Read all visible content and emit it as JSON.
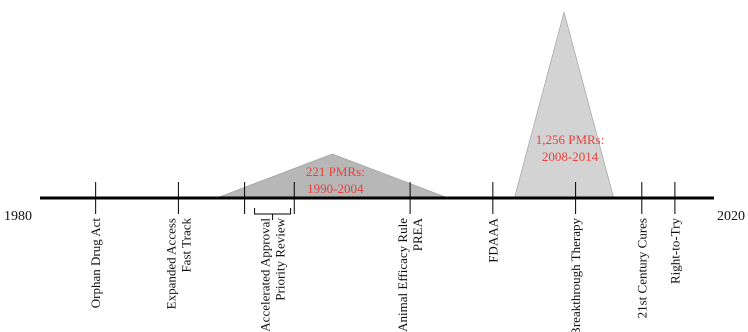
{
  "timeline": {
    "start_label": "1980",
    "end_label": "2020",
    "start_year": 1980,
    "end_year": 2020
  },
  "events": [
    {
      "id": "orphan-drug-act",
      "lines": [
        "Orphan Drug Act"
      ],
      "year": 1983
    },
    {
      "id": "expanded-access-fast-track",
      "lines": [
        "Expanded Access",
        "Fast Track"
      ],
      "year": 1988
    },
    {
      "id": "accelerated-approval-priority-review",
      "lines": [
        "Accelerated Approval",
        "Priority Review"
      ],
      "year": 1992,
      "bracket": true
    },
    {
      "id": "unlabeled-1995",
      "lines": [],
      "year": 1995
    },
    {
      "id": "animal-efficacy-rule-prea",
      "lines": [
        "Animal Efficacy Rule",
        "PREA"
      ],
      "year": 2002
    },
    {
      "id": "fdaaa",
      "lines": [
        "FDAAA"
      ],
      "year": 2007
    },
    {
      "id": "breakthrough-therapy",
      "lines": [
        "Breakthrough Therapy"
      ],
      "year": 2012
    },
    {
      "id": "21st-century-cures",
      "lines": [
        "21st Century Cures"
      ],
      "year": 2016
    },
    {
      "id": "right-to-try",
      "lines": [
        "Right-to-Try"
      ],
      "year": 2018
    }
  ],
  "pmr_periods": [
    {
      "id": "pmr-1990-2004",
      "label_lines": [
        "221 PMRs:",
        "1990-2004"
      ],
      "start_year": 1990,
      "end_year": 2004,
      "count": 221,
      "fill": "#b7b7b7"
    },
    {
      "id": "pmr-2008-2014",
      "label_lines": [
        "1,256 PMRs:",
        "2008-2014"
      ],
      "start_year": 2008,
      "end_year": 2014,
      "count": 1256,
      "fill": "#d3d3d3"
    }
  ],
  "colors": {
    "axis": "#000000",
    "text": "#111111",
    "pmr_label": "#e8413b"
  }
}
